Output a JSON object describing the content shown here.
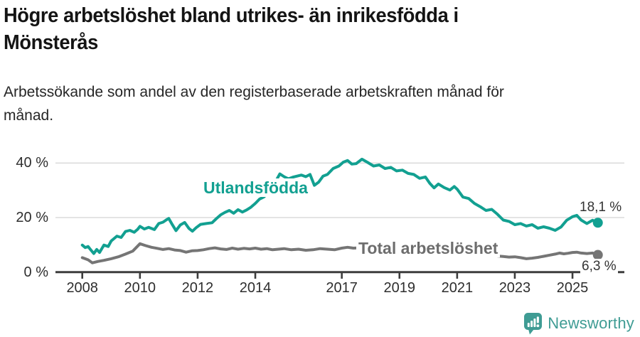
{
  "header": {
    "title_lines": [
      "Högre arbetslöshet bland utrikes- än inrikesfödda i",
      "Mönsterås"
    ],
    "subtitle_lines": [
      "Arbetssökande som andel av den registerbaserade arbetskraften månad för",
      "månad."
    ]
  },
  "footer": {
    "brand": "Newsworthy",
    "logo_icon": "bar-chart-speech-bubble-icon"
  },
  "colors": {
    "accent_teal": "#12a091",
    "series_gray": "#757575",
    "gridline": "#dcdcdc",
    "axis": "#3d3d3d",
    "label_gray": "#6d6d6d",
    "logo_teal": "#3f9c94",
    "text_dark": "#141414"
  },
  "chart_data": {
    "type": "line",
    "title": "Högre arbetslöshet bland utrikes- än inrikesfödda i Mönsterås",
    "subtitle": "Arbetssökande som andel av den registerbaserade arbetskraften månad för månad.",
    "unit": "%",
    "grid": "horizontal-only",
    "legend_position": "inline-labels",
    "x_axis": {
      "range": [
        2007.1,
        2026.8
      ],
      "ticks": [
        {
          "year": 2008,
          "label": "2008"
        },
        {
          "year": 2010,
          "label": "2010"
        },
        {
          "year": 2012,
          "label": "2012"
        },
        {
          "year": 2014,
          "label": "2014"
        },
        {
          "year": 2017,
          "label": "2017"
        },
        {
          "year": 2019,
          "label": "2019"
        },
        {
          "year": 2021,
          "label": "2021"
        },
        {
          "year": 2023,
          "label": "2023"
        },
        {
          "year": 2025,
          "label": "2025"
        }
      ]
    },
    "y_axis": {
      "range": [
        0,
        44
      ],
      "ticks": [
        {
          "value": 40,
          "label": "40 %"
        },
        {
          "value": 20,
          "label": "20 %"
        },
        {
          "value": 0,
          "label": "0 %"
        }
      ]
    },
    "series": [
      {
        "name": "Utlandsfödda",
        "label": "Utlandsfödda",
        "color": "#12a091",
        "end_label": "18,1 %",
        "end_value": 18.1,
        "points": [
          [
            2008,
            9.9
          ],
          [
            2008.1,
            9
          ],
          [
            2008.2,
            9.4
          ],
          [
            2008.4,
            6.8
          ],
          [
            2008.5,
            8.3
          ],
          [
            2008.6,
            7.2
          ],
          [
            2008.75,
            9.9
          ],
          [
            2008.9,
            9.4
          ],
          [
            2009,
            11.4
          ],
          [
            2009.2,
            13.2
          ],
          [
            2009.35,
            12.7
          ],
          [
            2009.5,
            14.9
          ],
          [
            2009.65,
            15.3
          ],
          [
            2009.8,
            14.6
          ],
          [
            2009.92,
            15.7
          ],
          [
            2010,
            16.8
          ],
          [
            2010.15,
            15.8
          ],
          [
            2010.3,
            16.4
          ],
          [
            2010.5,
            15.6
          ],
          [
            2010.65,
            17.8
          ],
          [
            2010.8,
            18.3
          ],
          [
            2010.92,
            19.2
          ],
          [
            2011,
            19.7
          ],
          [
            2011.1,
            17.8
          ],
          [
            2011.25,
            15.2
          ],
          [
            2011.4,
            17.3
          ],
          [
            2011.55,
            18.2
          ],
          [
            2011.7,
            16
          ],
          [
            2011.82,
            15
          ],
          [
            2011.95,
            16.3
          ],
          [
            2012.1,
            17.5
          ],
          [
            2012.3,
            17.8
          ],
          [
            2012.5,
            18.1
          ],
          [
            2012.65,
            19.6
          ],
          [
            2012.8,
            21
          ],
          [
            2012.95,
            21.9
          ],
          [
            2013.1,
            22.6
          ],
          [
            2013.25,
            21.6
          ],
          [
            2013.4,
            22.9
          ],
          [
            2013.55,
            22
          ],
          [
            2013.7,
            22.8
          ],
          [
            2013.85,
            23.8
          ],
          [
            2014,
            25.2
          ],
          [
            2014.15,
            26.8
          ],
          [
            2014.3,
            27.6
          ],
          [
            2014.5,
            29.6
          ],
          [
            2014.65,
            32.2
          ],
          [
            2014.85,
            36
          ],
          [
            2015,
            35
          ],
          [
            2015.15,
            34.2
          ],
          [
            2015.3,
            34.8
          ],
          [
            2015.45,
            35.2
          ],
          [
            2015.6,
            35.6
          ],
          [
            2015.75,
            35
          ],
          [
            2015.9,
            35.8
          ],
          [
            2016.05,
            31.8
          ],
          [
            2016.2,
            33
          ],
          [
            2016.35,
            35.2
          ],
          [
            2016.5,
            35.8
          ],
          [
            2016.7,
            38
          ],
          [
            2016.9,
            38.9
          ],
          [
            2017.05,
            40.3
          ],
          [
            2017.2,
            40.9
          ],
          [
            2017.35,
            39.6
          ],
          [
            2017.5,
            39.8
          ],
          [
            2017.7,
            41.4
          ],
          [
            2017.9,
            40.2
          ],
          [
            2018.1,
            38.9
          ],
          [
            2018.3,
            39.3
          ],
          [
            2018.5,
            38
          ],
          [
            2018.7,
            38.4
          ],
          [
            2018.9,
            37.1
          ],
          [
            2019.1,
            37.4
          ],
          [
            2019.3,
            36.2
          ],
          [
            2019.5,
            35.8
          ],
          [
            2019.7,
            34.4
          ],
          [
            2019.9,
            34.9
          ],
          [
            2020.05,
            32.6
          ],
          [
            2020.2,
            30.9
          ],
          [
            2020.35,
            32.3
          ],
          [
            2020.55,
            31
          ],
          [
            2020.75,
            30.1
          ],
          [
            2020.9,
            31.4
          ],
          [
            2021,
            30.4
          ],
          [
            2021.2,
            27.5
          ],
          [
            2021.4,
            27
          ],
          [
            2021.6,
            25.2
          ],
          [
            2021.8,
            24
          ],
          [
            2022,
            22.6
          ],
          [
            2022.2,
            23
          ],
          [
            2022.4,
            21.2
          ],
          [
            2022.6,
            19.1
          ],
          [
            2022.8,
            18.6
          ],
          [
            2023,
            17.4
          ],
          [
            2023.2,
            17.8
          ],
          [
            2023.4,
            16.9
          ],
          [
            2023.6,
            17.4
          ],
          [
            2023.8,
            16.1
          ],
          [
            2024,
            16.6
          ],
          [
            2024.2,
            16.1
          ],
          [
            2024.4,
            15.3
          ],
          [
            2024.6,
            16.5
          ],
          [
            2024.8,
            19
          ],
          [
            2025,
            20.3
          ],
          [
            2025.15,
            20.8
          ],
          [
            2025.3,
            19.1
          ],
          [
            2025.5,
            17.8
          ],
          [
            2025.7,
            19
          ],
          [
            2025.88,
            18.1
          ]
        ]
      },
      {
        "name": "Total arbetslöshet",
        "label": "Total arbetslöshet",
        "color": "#757575",
        "end_label": "6,3 %",
        "end_value": 6.3,
        "points": [
          [
            2008,
            5.3
          ],
          [
            2008.2,
            4.5
          ],
          [
            2008.35,
            3.4
          ],
          [
            2008.55,
            3.9
          ],
          [
            2008.75,
            4.3
          ],
          [
            2009,
            4.9
          ],
          [
            2009.25,
            5.6
          ],
          [
            2009.5,
            6.6
          ],
          [
            2009.75,
            7.7
          ],
          [
            2010,
            10.4
          ],
          [
            2010.2,
            9.7
          ],
          [
            2010.4,
            9.1
          ],
          [
            2010.6,
            8.7
          ],
          [
            2010.8,
            8.3
          ],
          [
            2011,
            8.6
          ],
          [
            2011.2,
            8.1
          ],
          [
            2011.4,
            7.9
          ],
          [
            2011.6,
            7.3
          ],
          [
            2011.8,
            7.8
          ],
          [
            2012,
            7.9
          ],
          [
            2012.2,
            8.2
          ],
          [
            2012.4,
            8.6
          ],
          [
            2012.6,
            8.9
          ],
          [
            2012.8,
            8.5
          ],
          [
            2013,
            8.3
          ],
          [
            2013.2,
            8.8
          ],
          [
            2013.4,
            8.4
          ],
          [
            2013.6,
            8.7
          ],
          [
            2013.8,
            8.5
          ],
          [
            2014,
            8.8
          ],
          [
            2014.2,
            8.4
          ],
          [
            2014.4,
            8.6
          ],
          [
            2014.6,
            8.2
          ],
          [
            2014.8,
            8.4
          ],
          [
            2015,
            8.6
          ],
          [
            2015.25,
            8.2
          ],
          [
            2015.5,
            8.4
          ],
          [
            2015.75,
            8
          ],
          [
            2016,
            8.2
          ],
          [
            2016.25,
            8.6
          ],
          [
            2016.5,
            8.4
          ],
          [
            2016.75,
            8.2
          ],
          [
            2017,
            8.8
          ],
          [
            2017.2,
            9.1
          ],
          [
            2017.4,
            8.8
          ],
          [
            2017.6,
            8.9
          ],
          [
            2017.8,
            8.6
          ],
          [
            2018,
            8.4
          ],
          [
            2018.3,
            8.1
          ],
          [
            2018.6,
            8
          ],
          [
            2018.9,
            7.9
          ],
          [
            2019.2,
            7.7
          ],
          [
            2019.5,
            7.5
          ],
          [
            2019.8,
            7.7
          ],
          [
            2020.1,
            8
          ],
          [
            2020.4,
            8.5
          ],
          [
            2020.7,
            8.3
          ],
          [
            2021,
            8
          ],
          [
            2021.3,
            7.6
          ],
          [
            2021.6,
            7.1
          ],
          [
            2021.9,
            6.8
          ],
          [
            2022.2,
            6.3
          ],
          [
            2022.4,
            5.9
          ],
          [
            2022.6,
            5.7
          ],
          [
            2022.8,
            5.5
          ],
          [
            2023,
            5.6
          ],
          [
            2023.2,
            5.3
          ],
          [
            2023.4,
            4.9
          ],
          [
            2023.6,
            5.1
          ],
          [
            2023.8,
            5.4
          ],
          [
            2024,
            5.8
          ],
          [
            2024.2,
            6.2
          ],
          [
            2024.4,
            6.6
          ],
          [
            2024.55,
            7
          ],
          [
            2024.7,
            6.7
          ],
          [
            2024.85,
            6.9
          ],
          [
            2025,
            7.2
          ],
          [
            2025.15,
            7.3
          ],
          [
            2025.3,
            7
          ],
          [
            2025.5,
            6.8
          ],
          [
            2025.7,
            7
          ],
          [
            2025.88,
            6.3
          ]
        ]
      }
    ]
  }
}
